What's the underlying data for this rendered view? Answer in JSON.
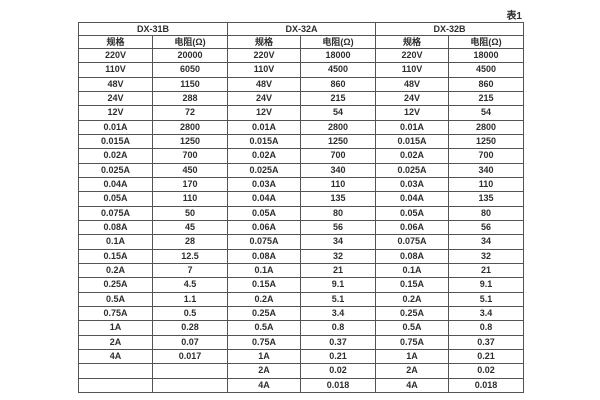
{
  "page": {
    "table_label": "表1"
  },
  "table": {
    "groups": [
      {
        "name": "DX-31B",
        "spec_header": "规格",
        "resistance_header": "电阻(Ω)",
        "rows": [
          [
            "220V",
            "20000"
          ],
          [
            "110V",
            "6050"
          ],
          [
            "48V",
            "1150"
          ],
          [
            "24V",
            "288"
          ],
          [
            "12V",
            "72"
          ],
          [
            "0.01A",
            "2800"
          ],
          [
            "0.015A",
            "1250"
          ],
          [
            "0.02A",
            "700"
          ],
          [
            "0.025A",
            "450"
          ],
          [
            "0.04A",
            "170"
          ],
          [
            "0.05A",
            "110"
          ],
          [
            "0.075A",
            "50"
          ],
          [
            "0.08A",
            "45"
          ],
          [
            "0.1A",
            "28"
          ],
          [
            "0.15A",
            "12.5"
          ],
          [
            "0.2A",
            "7"
          ],
          [
            "0.25A",
            "4.5"
          ],
          [
            "0.5A",
            "1.1"
          ],
          [
            "0.75A",
            "0.5"
          ],
          [
            "1A",
            "0.28"
          ],
          [
            "2A",
            "0.07"
          ],
          [
            "4A",
            "0.017"
          ],
          [
            "",
            ""
          ],
          [
            "",
            ""
          ]
        ]
      },
      {
        "name": "DX-32A",
        "spec_header": "规格",
        "resistance_header": "电阻(Ω)",
        "rows": [
          [
            "220V",
            "18000"
          ],
          [
            "110V",
            "4500"
          ],
          [
            "48V",
            "860"
          ],
          [
            "24V",
            "215"
          ],
          [
            "12V",
            "54"
          ],
          [
            "0.01A",
            "2800"
          ],
          [
            "0.015A",
            "1250"
          ],
          [
            "0.02A",
            "700"
          ],
          [
            "0.025A",
            "340"
          ],
          [
            "0.03A",
            "110"
          ],
          [
            "0.04A",
            "135"
          ],
          [
            "0.05A",
            "80"
          ],
          [
            "0.06A",
            "56"
          ],
          [
            "0.075A",
            "34"
          ],
          [
            "0.08A",
            "32"
          ],
          [
            "0.1A",
            "21"
          ],
          [
            "0.15A",
            "9.1"
          ],
          [
            "0.2A",
            "5.1"
          ],
          [
            "0.25A",
            "3.4"
          ],
          [
            "0.5A",
            "0.8"
          ],
          [
            "0.75A",
            "0.37"
          ],
          [
            "1A",
            "0.21"
          ],
          [
            "2A",
            "0.02"
          ],
          [
            "4A",
            "0.018"
          ]
        ]
      },
      {
        "name": "DX-32B",
        "spec_header": "规格",
        "resistance_header": "电阻(Ω)",
        "rows": [
          [
            "220V",
            "18000"
          ],
          [
            "110V",
            "4500"
          ],
          [
            "48V",
            "860"
          ],
          [
            "24V",
            "215"
          ],
          [
            "12V",
            "54"
          ],
          [
            "0.01A",
            "2800"
          ],
          [
            "0.015A",
            "1250"
          ],
          [
            "0.02A",
            "700"
          ],
          [
            "0.025A",
            "340"
          ],
          [
            "0.03A",
            "110"
          ],
          [
            "0.04A",
            "135"
          ],
          [
            "0.05A",
            "80"
          ],
          [
            "0.06A",
            "56"
          ],
          [
            "0.075A",
            "34"
          ],
          [
            "0.08A",
            "32"
          ],
          [
            "0.1A",
            "21"
          ],
          [
            "0.15A",
            "9.1"
          ],
          [
            "0.2A",
            "5.1"
          ],
          [
            "0.25A",
            "3.4"
          ],
          [
            "0.5A",
            "0.8"
          ],
          [
            "0.75A",
            "0.37"
          ],
          [
            "1A",
            "0.21"
          ],
          [
            "2A",
            "0.02"
          ],
          [
            "4A",
            "0.018"
          ]
        ]
      }
    ]
  }
}
